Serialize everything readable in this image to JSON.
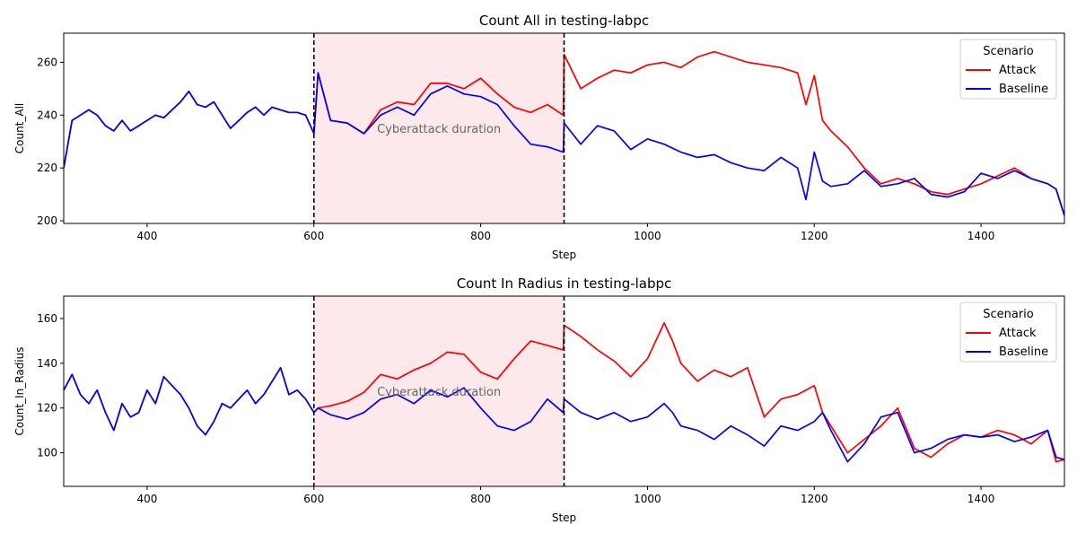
{
  "colors": {
    "attack": "#ff0000",
    "baseline": "#0000ff",
    "shade": "#fde8ec",
    "axis": "#000000"
  },
  "legend": {
    "title": "Scenario",
    "placement": "top-right",
    "entries": [
      "Attack",
      "Baseline"
    ]
  },
  "chart_data": [
    {
      "type": "line",
      "title": "Count All in testing-labpc",
      "xlabel": "Step",
      "ylabel": "Count_All",
      "xlim": [
        300,
        1500
      ],
      "ylim": [
        199,
        271
      ],
      "xticks": [
        400,
        600,
        800,
        1000,
        1200,
        1400
      ],
      "yticks": [
        200,
        220,
        240,
        260
      ],
      "grid": false,
      "vlines": [
        600,
        900
      ],
      "shaded_region": {
        "from": 600,
        "to": 900,
        "label": "Cyberattack duration"
      },
      "series": [
        {
          "name": "Attack",
          "color": "#ff0000",
          "x": [
            300,
            310,
            320,
            330,
            340,
            350,
            360,
            370,
            380,
            390,
            400,
            410,
            420,
            430,
            440,
            450,
            460,
            470,
            480,
            490,
            500,
            510,
            520,
            530,
            540,
            550,
            560,
            570,
            580,
            590,
            600,
            605,
            620,
            640,
            660,
            680,
            700,
            720,
            740,
            760,
            780,
            800,
            820,
            840,
            860,
            880,
            899,
            900,
            920,
            940,
            960,
            980,
            1000,
            1020,
            1040,
            1060,
            1080,
            1100,
            1120,
            1140,
            1160,
            1180,
            1190,
            1200,
            1210,
            1220,
            1240,
            1260,
            1280,
            1300,
            1320,
            1340,
            1360,
            1380,
            1400,
            1420,
            1440,
            1460,
            1480,
            1490,
            1500
          ],
          "y": [
            220,
            238,
            240,
            242,
            240,
            236,
            234,
            238,
            234,
            236,
            238,
            240,
            239,
            242,
            245,
            249,
            244,
            243,
            245,
            240,
            235,
            238,
            241,
            243,
            240,
            243,
            242,
            241,
            241,
            240,
            233,
            256,
            238,
            237,
            233,
            242,
            245,
            244,
            252,
            252,
            250,
            254,
            248,
            243,
            241,
            244,
            240,
            263,
            250,
            254,
            257,
            256,
            259,
            260,
            258,
            262,
            264,
            262,
            260,
            259,
            258,
            256,
            244,
            255,
            238,
            234,
            228,
            220,
            214,
            216,
            214,
            211,
            210,
            212,
            214,
            217,
            220,
            216,
            214,
            212,
            202
          ]
        },
        {
          "name": "Baseline",
          "color": "#0000ff",
          "x": [
            300,
            310,
            320,
            330,
            340,
            350,
            360,
            370,
            380,
            390,
            400,
            410,
            420,
            430,
            440,
            450,
            460,
            470,
            480,
            490,
            500,
            510,
            520,
            530,
            540,
            550,
            560,
            570,
            580,
            590,
            600,
            605,
            620,
            640,
            660,
            680,
            700,
            720,
            740,
            760,
            780,
            800,
            820,
            840,
            860,
            880,
            899,
            900,
            920,
            940,
            960,
            980,
            1000,
            1020,
            1040,
            1060,
            1080,
            1100,
            1120,
            1140,
            1160,
            1180,
            1190,
            1200,
            1210,
            1220,
            1240,
            1260,
            1280,
            1300,
            1320,
            1340,
            1360,
            1380,
            1400,
            1420,
            1440,
            1460,
            1480,
            1490,
            1500
          ],
          "y": [
            220,
            238,
            240,
            242,
            240,
            236,
            234,
            238,
            234,
            236,
            238,
            240,
            239,
            242,
            245,
            249,
            244,
            243,
            245,
            240,
            235,
            238,
            241,
            243,
            240,
            243,
            242,
            241,
            241,
            240,
            233,
            256,
            238,
            237,
            233,
            240,
            243,
            240,
            248,
            251,
            248,
            247,
            244,
            236,
            229,
            228,
            226,
            237,
            229,
            236,
            234,
            227,
            231,
            229,
            226,
            224,
            225,
            222,
            220,
            219,
            224,
            220,
            208,
            226,
            215,
            213,
            214,
            219,
            213,
            214,
            216,
            210,
            209,
            211,
            218,
            216,
            219,
            216,
            214,
            212,
            202
          ]
        }
      ]
    },
    {
      "type": "line",
      "title": "Count In Radius in testing-labpc",
      "xlabel": "Step",
      "ylabel": "Count_In_Radius",
      "xlim": [
        300,
        1500
      ],
      "ylim": [
        85,
        170
      ],
      "xticks": [
        400,
        600,
        800,
        1000,
        1200,
        1400
      ],
      "yticks": [
        100,
        120,
        140,
        160
      ],
      "grid": false,
      "vlines": [
        600,
        900
      ],
      "shaded_region": {
        "from": 600,
        "to": 900,
        "label": "Cyberattack duration"
      },
      "series": [
        {
          "name": "Attack",
          "color": "#ff0000",
          "x": [
            300,
            310,
            320,
            330,
            340,
            350,
            360,
            370,
            380,
            390,
            400,
            410,
            420,
            430,
            440,
            450,
            460,
            470,
            480,
            490,
            500,
            510,
            520,
            530,
            540,
            550,
            560,
            570,
            580,
            590,
            600,
            605,
            620,
            640,
            660,
            680,
            700,
            720,
            740,
            760,
            780,
            800,
            820,
            840,
            860,
            880,
            899,
            900,
            920,
            940,
            960,
            980,
            1000,
            1020,
            1030,
            1040,
            1060,
            1080,
            1100,
            1120,
            1140,
            1160,
            1180,
            1200,
            1210,
            1220,
            1240,
            1260,
            1280,
            1300,
            1320,
            1340,
            1360,
            1380,
            1400,
            1420,
            1440,
            1460,
            1480,
            1490,
            1500
          ],
          "y": [
            128,
            135,
            126,
            122,
            128,
            118,
            110,
            122,
            116,
            118,
            128,
            122,
            134,
            130,
            126,
            120,
            112,
            108,
            114,
            122,
            120,
            124,
            128,
            122,
            126,
            132,
            138,
            126,
            128,
            124,
            118,
            120,
            121,
            123,
            127,
            135,
            133,
            137,
            140,
            145,
            144,
            136,
            133,
            142,
            150,
            148,
            146,
            157,
            152,
            146,
            141,
            134,
            142,
            158,
            150,
            140,
            132,
            137,
            134,
            138,
            116,
            124,
            126,
            130,
            118,
            112,
            100,
            106,
            112,
            120,
            102,
            98,
            104,
            108,
            107,
            110,
            108,
            104,
            110,
            96,
            97
          ]
        },
        {
          "name": "Baseline",
          "color": "#0000ff",
          "x": [
            300,
            310,
            320,
            330,
            340,
            350,
            360,
            370,
            380,
            390,
            400,
            410,
            420,
            430,
            440,
            450,
            460,
            470,
            480,
            490,
            500,
            510,
            520,
            530,
            540,
            550,
            560,
            570,
            580,
            590,
            600,
            605,
            620,
            640,
            660,
            680,
            700,
            720,
            740,
            760,
            780,
            800,
            820,
            840,
            860,
            880,
            899,
            900,
            920,
            940,
            960,
            980,
            1000,
            1020,
            1030,
            1040,
            1060,
            1080,
            1100,
            1120,
            1140,
            1160,
            1180,
            1200,
            1210,
            1220,
            1240,
            1260,
            1280,
            1300,
            1320,
            1340,
            1360,
            1380,
            1400,
            1420,
            1440,
            1460,
            1480,
            1490,
            1500
          ],
          "y": [
            128,
            135,
            126,
            122,
            128,
            118,
            110,
            122,
            116,
            118,
            128,
            122,
            134,
            130,
            126,
            120,
            112,
            108,
            114,
            122,
            120,
            124,
            128,
            122,
            126,
            132,
            138,
            126,
            128,
            124,
            118,
            120,
            117,
            115,
            118,
            124,
            126,
            122,
            128,
            125,
            129,
            120,
            112,
            110,
            114,
            124,
            118,
            124,
            118,
            115,
            118,
            114,
            116,
            122,
            118,
            112,
            110,
            106,
            112,
            108,
            103,
            112,
            110,
            114,
            118,
            110,
            96,
            104,
            116,
            118,
            100,
            102,
            106,
            108,
            107,
            108,
            105,
            107,
            110,
            98,
            97
          ]
        }
      ]
    }
  ]
}
